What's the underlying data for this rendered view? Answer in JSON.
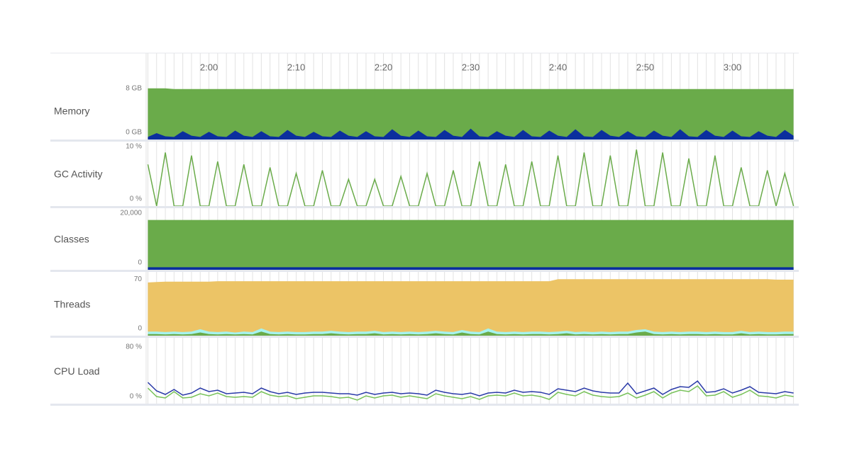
{
  "x_axis": {
    "xlim": [
      112.8,
      187.6
    ],
    "xticks": [
      {
        "value": 120,
        "label": "2:00"
      },
      {
        "value": 130,
        "label": "2:10"
      },
      {
        "value": 140,
        "label": "2:20"
      },
      {
        "value": 150,
        "label": "2:30"
      },
      {
        "value": 160,
        "label": "2:40"
      },
      {
        "value": 170,
        "label": "2:50"
      },
      {
        "value": 180,
        "label": "3:00"
      }
    ],
    "grid": true,
    "x": [
      113,
      114,
      115,
      116,
      117,
      118,
      119,
      120,
      121,
      122,
      123,
      124,
      125,
      126,
      127,
      128,
      129,
      130,
      131,
      132,
      133,
      134,
      135,
      136,
      137,
      138,
      139,
      140,
      141,
      142,
      143,
      144,
      145,
      146,
      147,
      148,
      149,
      150,
      151,
      152,
      153,
      154,
      155,
      156,
      157,
      158,
      159,
      160,
      161,
      162,
      163,
      164,
      165,
      166,
      167,
      168,
      169,
      170,
      171,
      172,
      173,
      174,
      175,
      176,
      177,
      178,
      179,
      180,
      181,
      182,
      183,
      184,
      185,
      186,
      187
    ]
  },
  "chart_data": [
    {
      "type": "area",
      "title": "Memory",
      "ylim": [
        0,
        8.2
      ],
      "yticks": [
        {
          "value": 8,
          "label": "8 GB"
        },
        {
          "value": 0,
          "label": "0 GB"
        }
      ],
      "series": [
        {
          "color": "#6aab4a",
          "values": [
            8.0,
            8.0,
            8.0,
            7.9,
            7.9,
            7.9,
            7.9,
            7.9,
            7.9,
            7.9,
            7.9,
            7.9,
            7.9,
            7.9,
            7.9,
            7.9,
            7.9,
            7.9,
            7.9,
            7.9,
            7.9,
            7.9,
            7.9,
            7.9,
            7.9,
            7.9,
            7.9,
            7.9,
            7.9,
            7.9,
            7.9,
            7.9,
            7.9,
            7.9,
            7.9,
            7.9,
            7.9,
            7.9,
            7.9,
            7.9,
            7.9,
            7.9,
            7.9,
            7.9,
            7.9,
            7.9,
            7.9,
            7.9,
            7.9,
            7.9,
            7.9,
            7.9,
            7.9,
            7.9,
            7.9,
            7.9,
            7.9,
            7.9,
            7.9,
            7.9,
            7.9,
            7.9,
            7.9,
            7.9,
            7.9,
            7.9,
            7.9,
            7.9,
            7.9,
            7.9,
            7.9,
            7.9,
            7.9,
            7.9,
            7.9
          ]
        },
        {
          "color": "#0b2f9e",
          "values": [
            0.4,
            1.0,
            0.5,
            0.4,
            1.3,
            0.6,
            0.4,
            1.2,
            0.5,
            0.4,
            1.4,
            0.6,
            0.4,
            1.3,
            0.5,
            0.4,
            1.5,
            0.6,
            0.4,
            1.2,
            0.5,
            0.4,
            1.4,
            0.6,
            0.4,
            1.3,
            0.5,
            0.4,
            1.6,
            0.6,
            0.4,
            1.4,
            0.5,
            0.4,
            1.5,
            0.6,
            0.4,
            1.7,
            0.5,
            0.4,
            1.3,
            0.6,
            0.4,
            1.5,
            0.5,
            0.4,
            1.4,
            0.6,
            0.4,
            1.6,
            0.5,
            0.4,
            1.5,
            0.6,
            0.4,
            1.3,
            0.5,
            0.4,
            1.4,
            0.6,
            0.4,
            1.6,
            0.5,
            0.4,
            1.5,
            0.6,
            0.4,
            1.4,
            0.5,
            0.4,
            1.3,
            0.6,
            0.4,
            1.5,
            0.6
          ]
        }
      ]
    },
    {
      "type": "line",
      "title": "GC Activity",
      "ylim": [
        0,
        10
      ],
      "yticks": [
        {
          "value": 10,
          "label": "10 %"
        },
        {
          "value": 0,
          "label": "0 %"
        }
      ],
      "series": [
        {
          "color": "#6aab4a",
          "values": [
            7,
            0,
            9,
            0,
            0,
            8.5,
            0,
            0,
            7.5,
            0,
            0,
            7,
            0,
            0,
            6.5,
            0,
            0,
            5.5,
            0,
            0,
            6,
            0,
            0,
            4.5,
            0,
            0,
            4.5,
            0,
            0,
            5,
            0,
            0,
            5.5,
            0,
            0,
            6,
            0,
            0,
            7.5,
            0,
            0,
            7,
            0,
            0,
            7.5,
            0,
            0,
            8.5,
            0,
            0,
            9,
            0,
            0,
            8.5,
            0,
            0,
            9.5,
            0,
            0,
            9,
            0,
            0,
            8,
            0,
            0,
            8.5,
            0,
            0,
            6.5,
            0,
            0,
            6,
            0,
            5.5,
            0
          ]
        }
      ]
    },
    {
      "type": "area",
      "title": "Classes",
      "ylim": [
        0,
        20000
      ],
      "yticks": [
        {
          "value": 20000,
          "label": "20,000"
        },
        0
      ],
      "series": [
        {
          "color": "#6aab4a",
          "values": [
            17600,
            17600,
            17600,
            17600,
            17600,
            17600,
            17600,
            17600,
            17600,
            17600,
            17600,
            17600,
            17600,
            17600,
            17600,
            17600,
            17600,
            17600,
            17600,
            17600,
            17600,
            17600,
            17600,
            17600,
            17600,
            17600,
            17600,
            17600,
            17600,
            17600,
            17600,
            17600,
            17600,
            17600,
            17600,
            17600,
            17600,
            17600,
            17600,
            17600,
            17600,
            17600,
            17600,
            17600,
            17600,
            17600,
            17600,
            17600,
            17600,
            17600,
            17600,
            17600,
            17600,
            17600,
            17600,
            17600,
            17600,
            17600,
            17600,
            17600,
            17600,
            17600,
            17600,
            17600,
            17600,
            17600,
            17600,
            17600,
            17600,
            17600,
            17600,
            17600,
            17600,
            17600,
            17600
          ]
        },
        {
          "color": "#0b2f9e",
          "values": [
            900,
            900,
            900,
            900,
            900,
            900,
            900,
            900,
            900,
            900,
            900,
            900,
            900,
            900,
            900,
            900,
            900,
            900,
            900,
            900,
            900,
            900,
            900,
            900,
            900,
            900,
            900,
            900,
            900,
            900,
            900,
            900,
            900,
            900,
            900,
            900,
            900,
            900,
            900,
            900,
            900,
            900,
            900,
            900,
            900,
            900,
            900,
            900,
            900,
            900,
            900,
            900,
            900,
            900,
            900,
            900,
            900,
            900,
            900,
            900,
            900,
            900,
            900,
            900,
            900,
            900,
            900,
            900,
            900,
            900,
            900,
            900,
            900,
            900,
            900
          ]
        }
      ]
    },
    {
      "type": "area",
      "title": "Threads",
      "ylim": [
        0,
        72
      ],
      "yticks": [
        70,
        0
      ],
      "series": [
        {
          "color": "#ecc466",
          "values": [
            66,
            66.5,
            67,
            67,
            67,
            67,
            67,
            67,
            67.5,
            67.5,
            67.5,
            67.5,
            67.5,
            67.5,
            67.5,
            67.5,
            67.5,
            67.5,
            67.5,
            67.5,
            67.5,
            67.5,
            67.5,
            67.5,
            67.5,
            67.5,
            67.5,
            67.5,
            67.5,
            67.5,
            67.5,
            67.5,
            67.5,
            67.5,
            67.5,
            67.5,
            67.5,
            67.5,
            67.5,
            67.5,
            67.5,
            67.5,
            67.5,
            67.5,
            67.5,
            67.5,
            67.5,
            70,
            70,
            70,
            70,
            70,
            70,
            70,
            70,
            70,
            70,
            70,
            70,
            70,
            70,
            70,
            70,
            70,
            70,
            70,
            70,
            70,
            70,
            70,
            70,
            70,
            69.5,
            69.5,
            69.5
          ]
        },
        {
          "color": "#a6f3ee",
          "values": [
            5,
            5,
            4.5,
            5,
            4.5,
            5,
            8,
            5,
            4.5,
            5,
            4,
            5,
            4.5,
            9,
            5,
            4.5,
            5,
            4.5,
            4.5,
            5,
            5,
            6,
            5,
            4.5,
            5,
            5,
            6,
            4.5,
            5,
            4.5,
            5,
            4.5,
            5,
            6,
            5,
            4.5,
            7,
            5,
            4.5,
            9,
            5,
            4.5,
            5,
            4.5,
            5,
            5,
            4.5,
            5,
            6,
            4.5,
            5,
            4.5,
            5,
            4.5,
            5,
            5,
            7,
            8,
            5,
            4.5,
            5,
            4.5,
            5,
            5,
            4.5,
            5,
            4.5,
            4.5,
            6,
            4.5,
            5,
            4.5,
            4.5,
            5,
            5
          ]
        },
        {
          "color": "#6aab4a",
          "values": [
            2,
            2,
            1.5,
            2,
            1.5,
            2,
            4,
            2,
            1.5,
            2,
            1.5,
            2,
            1.5,
            5,
            2,
            1.5,
            2,
            1.5,
            1.5,
            2,
            2,
            3,
            2,
            1.5,
            2,
            2,
            3,
            1.5,
            2,
            1.5,
            2,
            1.5,
            2,
            3,
            2,
            1.5,
            4,
            2,
            1.5,
            5,
            2,
            1.5,
            2,
            1.5,
            2,
            2,
            1.5,
            2,
            3,
            1.5,
            2,
            1.5,
            2,
            1.5,
            2,
            2,
            4,
            5,
            2,
            1.5,
            2,
            1.5,
            2,
            2,
            1.5,
            2,
            1.5,
            1.5,
            3,
            1.5,
            2,
            1.5,
            1.5,
            2,
            2
          ]
        }
      ]
    },
    {
      "type": "line",
      "title": "CPU Load",
      "ylim": [
        0,
        85
      ],
      "yticks": [
        {
          "value": 80,
          "label": "80 %"
        },
        {
          "value": 0,
          "label": "0 %"
        }
      ],
      "series": [
        {
          "color": "#2a3aa8",
          "values": [
            30,
            18,
            13,
            20,
            12,
            15,
            22,
            17,
            19,
            14,
            15,
            16,
            14,
            22,
            17,
            14,
            16,
            13,
            15,
            16,
            16,
            15,
            14,
            14,
            12,
            16,
            13,
            15,
            16,
            14,
            15,
            14,
            12,
            19,
            16,
            14,
            13,
            15,
            11,
            15,
            16,
            15,
            19,
            16,
            17,
            16,
            13,
            21,
            19,
            17,
            22,
            18,
            16,
            15,
            15,
            29,
            14,
            18,
            22,
            13,
            20,
            24,
            23,
            32,
            16,
            17,
            21,
            15,
            19,
            24,
            16,
            15,
            14,
            17,
            15
          ]
        },
        {
          "color": "#78c25a",
          "values": [
            22,
            10,
            8,
            17,
            8,
            9,
            14,
            11,
            15,
            10,
            9,
            10,
            9,
            17,
            12,
            10,
            11,
            7,
            9,
            11,
            11,
            10,
            8,
            9,
            5,
            11,
            8,
            11,
            12,
            9,
            11,
            9,
            7,
            14,
            11,
            9,
            7,
            10,
            6,
            11,
            12,
            11,
            15,
            11,
            12,
            10,
            6,
            16,
            13,
            11,
            17,
            12,
            10,
            9,
            10,
            15,
            8,
            12,
            17,
            8,
            15,
            19,
            17,
            25,
            11,
            12,
            17,
            9,
            13,
            19,
            11,
            10,
            8,
            12,
            10
          ]
        }
      ]
    }
  ]
}
